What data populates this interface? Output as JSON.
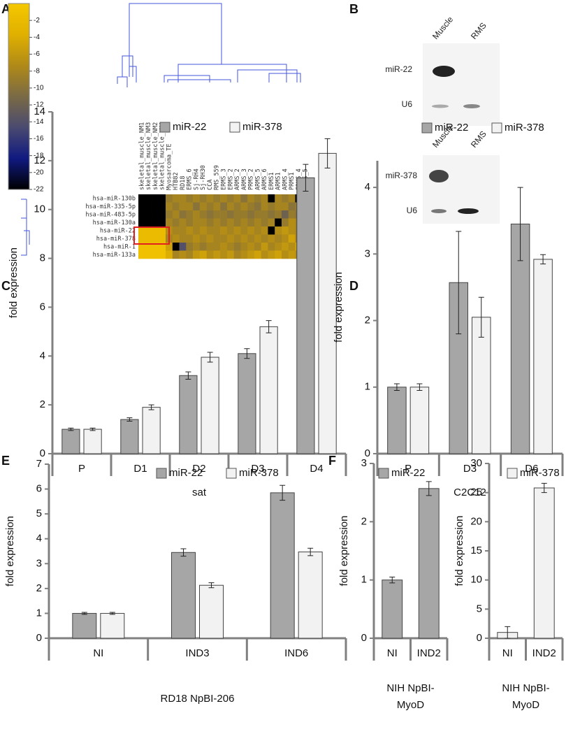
{
  "blots": {
    "panel": "B",
    "groups": [
      {
        "lanes": [
          "Muscle",
          "RMS"
        ],
        "rows": [
          "miR-22",
          "U6"
        ]
      },
      {
        "lanes": [
          "Muscle",
          "RMS"
        ],
        "rows": [
          "miR-378",
          "U6"
        ]
      }
    ]
  },
  "chart_data": [
    {
      "type": "heatmap",
      "panel": "A",
      "rows": [
        "hsa-miR-130b",
        "hsa-miR-335-5p",
        "hsa-miR-483-5p",
        "hsa-miR-130a",
        "hsa-miR-22",
        "hsa-miR-378",
        "hsa-miR-1",
        "hsa-miR-133a"
      ],
      "columns": [
        "skeletal_muscle_NM1",
        "skeletal_muscle_NM3",
        "skeletal_muscle_NM2",
        "skeletal_muscle_NM4",
        "Myosarcoma_TE",
        "HTB82",
        "RD18",
        "ERMS_6",
        "Sj-RH4",
        "Sj-RH30",
        "CCA",
        "RMS_559",
        "ERMS_3",
        "ERMS_2",
        "ARMS_2",
        "ARMS_3",
        "PRMS_2",
        "ARMS_5",
        "ARMS_6",
        "ERMS1",
        "ARMS1",
        "ARMS_4",
        "PRMS1",
        "ERMS_4",
        "ERMS_5"
      ],
      "values": [
        [
          -22,
          -22,
          -22,
          -22,
          -9,
          -8,
          -8,
          -9,
          -8,
          -9,
          -8,
          -9,
          -8,
          -9,
          -8,
          -10,
          -8,
          -9,
          -8,
          -22,
          -8,
          -9,
          -8,
          -22,
          -22
        ],
        [
          -22,
          -22,
          -22,
          -22,
          -8,
          -9,
          -8,
          -8,
          -10,
          -8,
          -9,
          -8,
          -10,
          -8,
          -9,
          -8,
          -9,
          -10,
          -8,
          -9,
          -8,
          -8,
          -10,
          -9,
          -8
        ],
        [
          -22,
          -22,
          -22,
          -22,
          -9,
          -8,
          -10,
          -9,
          -8,
          -9,
          -10,
          -9,
          -9,
          -10,
          -9,
          -9,
          -10,
          -9,
          -9,
          -10,
          -9,
          -12,
          -9,
          -10,
          -9
        ],
        [
          -22,
          -22,
          -22,
          -22,
          -8,
          -9,
          -8,
          -9,
          -8,
          -8,
          -9,
          -8,
          -9,
          -8,
          -9,
          -8,
          -9,
          -8,
          -9,
          -8,
          -22,
          -9,
          -7,
          -8,
          -9
        ],
        [
          -2,
          -2,
          -2,
          -2,
          -7,
          -8,
          -8,
          -7,
          -8,
          -7,
          -8,
          -8,
          -7,
          -8,
          -7,
          -8,
          -7,
          -8,
          -7,
          -22,
          -7,
          -6,
          -7,
          -8,
          -7
        ],
        [
          -2,
          -2,
          -2,
          -2,
          -8,
          -7,
          -8,
          -8,
          -7,
          -8,
          -7,
          -8,
          -8,
          -7,
          -8,
          -7,
          -8,
          -7,
          -8,
          -7,
          -8,
          -7,
          -5,
          -8,
          -7
        ],
        [
          -1,
          -1,
          -1,
          -1,
          -5,
          -22,
          -14,
          -9,
          -8,
          -9,
          -8,
          -8,
          -7,
          -8,
          -9,
          -8,
          -7,
          -8,
          -6,
          -8,
          -7,
          -6,
          -7,
          -5,
          -6
        ],
        [
          -1,
          -1,
          -1,
          -1,
          -4,
          -8,
          -7,
          -8,
          -6,
          -5,
          -7,
          -6,
          -7,
          -6,
          -8,
          -7,
          -6,
          -5,
          -7,
          -6,
          -5,
          -7,
          -6,
          -7,
          -5
        ]
      ],
      "clim": [
        -22,
        0
      ],
      "cticks": [
        -2,
        -4,
        -6,
        -8,
        -10,
        -12,
        -14,
        -16,
        -18,
        -20,
        -22
      ],
      "colorscale": [
        "#000000",
        "#101a80",
        "#4a4a70",
        "#7a6a45",
        "#b08a18",
        "#e0b000",
        "#f5c800"
      ]
    },
    {
      "type": "bar",
      "panel": "C",
      "xlabel": "sat",
      "ylabel": "fold expression",
      "categories": [
        "P",
        "D1",
        "D2",
        "D3",
        "D4"
      ],
      "ylim": [
        0,
        14
      ],
      "yticks": [
        0,
        2,
        4,
        6,
        8,
        10,
        12,
        14
      ],
      "series": [
        {
          "name": "miR-22",
          "color": "#a6a6a6",
          "values": [
            1,
            1.4,
            3.2,
            4.1,
            11.3
          ],
          "errors": [
            0.05,
            0.07,
            0.15,
            0.2,
            0.55
          ]
        },
        {
          "name": "miR-378",
          "color": "#f2f2f2",
          "values": [
            1,
            1.9,
            3.95,
            5.2,
            12.3
          ],
          "errors": [
            0.05,
            0.1,
            0.2,
            0.25,
            0.6
          ]
        }
      ]
    },
    {
      "type": "bar",
      "panel": "D",
      "xlabel": "C2C12",
      "ylabel": "fold expression",
      "categories": [
        "P",
        "D3",
        "D6"
      ],
      "ylim": [
        0,
        4.4
      ],
      "yticks": [
        0,
        1,
        2,
        3,
        4
      ],
      "series": [
        {
          "name": "miR-22",
          "color": "#a6a6a6",
          "values": [
            1,
            2.57,
            3.45
          ],
          "errors": [
            0.05,
            0.77,
            0.55
          ]
        },
        {
          "name": "miR-378",
          "color": "#f2f2f2",
          "values": [
            1,
            2.05,
            2.92
          ],
          "errors": [
            0.05,
            0.3,
            0.07
          ]
        }
      ]
    },
    {
      "type": "bar",
      "panel": "E",
      "xlabel": "RD18 NpBI-206",
      "ylabel": "fold expression",
      "categories": [
        "NI",
        "IND3",
        "IND6"
      ],
      "ylim": [
        0,
        7
      ],
      "yticks": [
        0,
        1,
        2,
        3,
        4,
        5,
        6,
        7
      ],
      "series": [
        {
          "name": "miR-22",
          "color": "#a6a6a6",
          "values": [
            1,
            3.45,
            5.85
          ],
          "errors": [
            0.04,
            0.15,
            0.3
          ]
        },
        {
          "name": "miR-378",
          "color": "#f2f2f2",
          "values": [
            1,
            2.13,
            3.47
          ],
          "errors": [
            0.04,
            0.1,
            0.15
          ]
        }
      ]
    },
    {
      "type": "bar",
      "panel": "F",
      "xlabel": [
        "NIH NpBI-",
        "MyoD"
      ],
      "ylabel": "fold expression",
      "categories": [
        "NI",
        "IND2"
      ],
      "ylim": [
        0,
        3
      ],
      "yticks": [
        0,
        1,
        2,
        3
      ],
      "series": [
        {
          "name": "miR-22",
          "color": "#a6a6a6",
          "values": [
            1,
            2.57
          ],
          "errors": [
            0.05,
            0.12
          ]
        }
      ]
    },
    {
      "type": "bar",
      "xlabel": [
        "NIH NpBI-",
        "MyoD"
      ],
      "ylabel": "fold expression",
      "categories": [
        "NI",
        "IND2"
      ],
      "ylim": [
        0,
        30
      ],
      "yticks": [
        0,
        5,
        10,
        15,
        20,
        25,
        30
      ],
      "series": [
        {
          "name": "miR-378",
          "color": "#f2f2f2",
          "values": [
            1,
            25.8
          ],
          "errors": [
            1,
            0.8
          ]
        }
      ]
    }
  ]
}
